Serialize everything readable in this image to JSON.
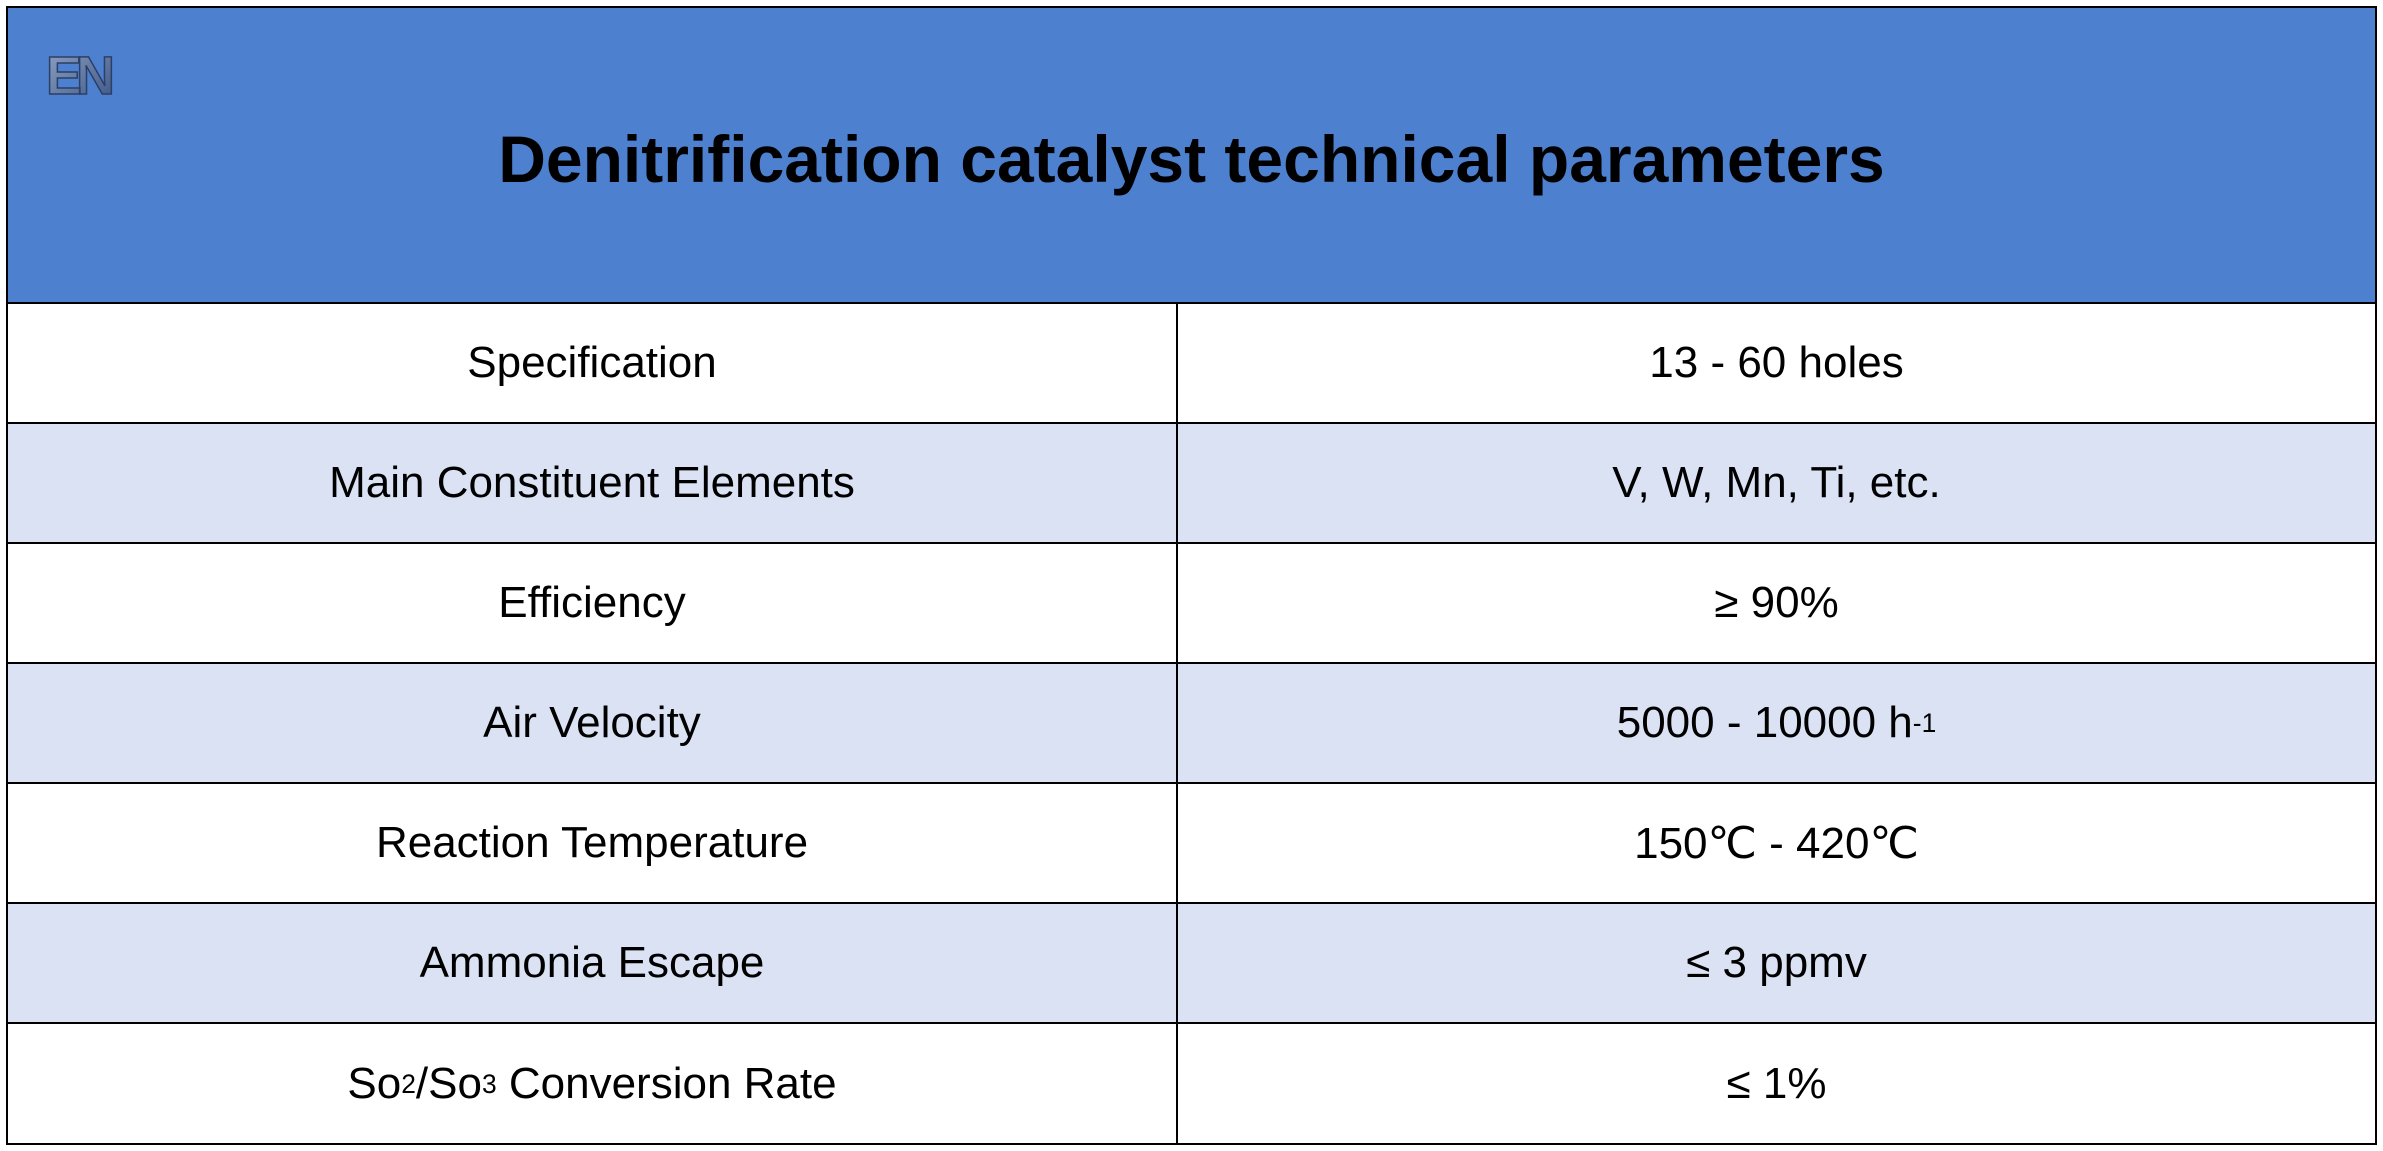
{
  "title": "Denitrification catalyst technical parameters",
  "logo": {
    "icon": "en-logo-icon",
    "text": "EN"
  },
  "colors": {
    "header_bg": "#4d80cf",
    "row_alt_bg": "#dae2f4",
    "border": "#000000"
  },
  "rows": [
    {
      "label": "Specification",
      "value": "13 - 60 holes"
    },
    {
      "label": "Main Constituent Elements",
      "value": "V, W, Mn, Ti, etc."
    },
    {
      "label": "Efficiency",
      "value": "≥ 90%"
    },
    {
      "label": "Air Velocity",
      "value": "5000 - 10000 h",
      "value_sup": "-1"
    },
    {
      "label": "Reaction Temperature",
      "value": "150℃ - 420℃"
    },
    {
      "label": "Ammonia Escape",
      "value": "≤ 3 ppmv"
    },
    {
      "label_parts": [
        "So",
        "2",
        "/So",
        "3",
        " Conversion Rate"
      ],
      "value": "≤ 1%"
    }
  ]
}
